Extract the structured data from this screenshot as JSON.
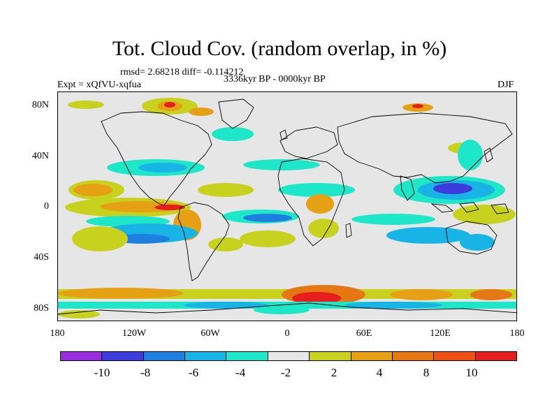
{
  "title": "Tot. Cloud Cov. (random overlap, in %)",
  "stats_line": "rmsd= 2.68218 diff= -0.114212",
  "experiment": "Expt = xQfVU-xqfua",
  "period": "3336kyr BP - 0000kyr BP",
  "season": "DJF",
  "lat_labels": [
    "80N",
    "40N",
    "0",
    "40S",
    "80S"
  ],
  "lon_labels": [
    "180",
    "120W",
    "60W",
    "0",
    "60E",
    "120E",
    "180"
  ],
  "colorbar": {
    "colors": [
      "#9b2de0",
      "#3c3cdc",
      "#1f7fe0",
      "#19b4e6",
      "#1ee6c8",
      "#e6e6e6",
      "#c8d21e",
      "#e6a014",
      "#e67814",
      "#f05014",
      "#e61e1e"
    ],
    "labels": [
      "-10",
      "-8",
      "-6",
      "-4",
      "-2",
      "2",
      "4",
      "8",
      "10"
    ]
  }
}
